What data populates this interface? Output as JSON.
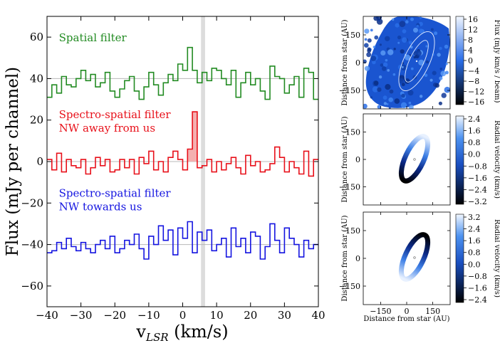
{
  "colors": {
    "green": "#228B22",
    "red": "#E8101A",
    "blue": "#1414E0",
    "ref_line": "#B8B8B8",
    "highlight_band": "#DCDCDC",
    "red_fill": "#F4B0B0",
    "map_blue": "#1a57d6"
  },
  "chart_data": [
    {
      "type": "line",
      "title": "",
      "xlabel": "v_LSR (km/s)",
      "xlabel_main": "v",
      "xlabel_sub": "LSR",
      "xlabel_units": " (km/s)",
      "ylabel": "Flux (mJy per channel)",
      "xlim": [
        -40,
        40
      ],
      "ylim": [
        -70,
        70
      ],
      "xticks": [
        -40,
        -30,
        -20,
        -10,
        0,
        10,
        20,
        30,
        40
      ],
      "xtick_labels": [
        "−40",
        "−30",
        "−20",
        "−10",
        "0",
        "10",
        "20",
        "30",
        "40"
      ],
      "yticks": [
        -60,
        -40,
        -20,
        0,
        20,
        40,
        60
      ],
      "ytick_labels": [
        "−60",
        "−40",
        "−20",
        "0",
        "20",
        "40",
        "60"
      ],
      "highlight_band_center": 6,
      "channel_width": 1.5,
      "series": [
        {
          "name": "Spatial filter",
          "label_lines": [
            "Spatial filter"
          ],
          "offset": 40,
          "color": "green",
          "values": [
            31,
            37,
            33,
            41,
            37,
            36,
            40,
            44,
            39,
            42,
            36,
            38,
            43,
            34,
            31,
            35,
            39,
            41,
            34,
            30,
            36,
            43,
            37,
            32,
            38,
            42,
            39,
            47,
            44,
            55,
            44,
            38,
            43,
            39,
            45,
            44,
            40,
            37,
            44,
            31,
            38,
            43,
            37,
            40,
            34,
            30,
            46,
            41,
            40,
            33,
            37,
            41,
            31,
            45,
            43,
            30
          ]
        },
        {
          "name": "Spectro-spatial filter NW away from us",
          "label_lines": [
            "Spectro-spatial filter",
            "NW away from us"
          ],
          "offset": 0,
          "color": "red",
          "values": [
            1,
            -4,
            4,
            -5,
            1,
            -2,
            -3,
            1,
            -6,
            -3,
            2,
            -2,
            1,
            -5,
            -4,
            1,
            -3,
            1,
            -6,
            2,
            -1,
            5,
            -4,
            0,
            -5,
            2,
            5,
            1,
            -4,
            6,
            24,
            -3,
            -2,
            1,
            -5,
            0,
            -4,
            -1,
            2,
            -3,
            -6,
            3,
            -2,
            0,
            -5,
            -4,
            -1,
            7,
            2,
            -5,
            0,
            -3,
            -6,
            5,
            -7,
            1
          ]
        },
        {
          "name": "Spectro-spatial filter NW towards us",
          "label_lines": [
            "Spectro-spatial filter",
            "NW towards us"
          ],
          "offset": -40,
          "color": "blue",
          "values": [
            -44,
            -43,
            -39,
            -42,
            -37,
            -41,
            -43,
            -39,
            -42,
            -44,
            -40,
            -38,
            -42,
            -36,
            -44,
            -42,
            -38,
            -40,
            -35,
            -42,
            -47,
            -36,
            -40,
            -31,
            -38,
            -33,
            -45,
            -32,
            -37,
            -29,
            -44,
            -34,
            -38,
            -33,
            -43,
            -40,
            -37,
            -46,
            -32,
            -41,
            -37,
            -44,
            -34,
            -36,
            -47,
            -41,
            -30,
            -38,
            -44,
            -32,
            -37,
            -40,
            -46,
            -38,
            -42,
            -40
          ]
        }
      ]
    },
    {
      "type": "heatmap",
      "title": "",
      "xlabel": "",
      "ylabel": "Distance from star (AU)",
      "colorbar_label": "Flux (mJy km/s / beam)",
      "colorbar_ticks": [
        "16",
        "12",
        "8",
        "4",
        "0",
        "−4",
        "−8",
        "−12",
        "−16"
      ],
      "yticks": [
        -150,
        0,
        150
      ],
      "ytick_labels": [
        "−150",
        "0",
        "150"
      ],
      "xlim": [
        -250,
        250
      ],
      "ylim": [
        -250,
        250
      ]
    },
    {
      "type": "heatmap",
      "title": "",
      "xlabel": "",
      "ylabel": "Distance from star (AU)",
      "colorbar_label": "Radial velocity (km/s)",
      "colorbar_ticks": [
        "2.4",
        "1.6",
        "0.8",
        "0.0",
        "−0.8",
        "−1.6",
        "−2.4",
        "−3.2"
      ],
      "yticks": [
        -150,
        0,
        150
      ],
      "ytick_labels": [
        "−150",
        "0",
        "150"
      ],
      "xlim": [
        -250,
        250
      ],
      "ylim": [
        -250,
        250
      ]
    },
    {
      "type": "heatmap",
      "title": "",
      "xlabel": "Distance from star (AU)",
      "ylabel": "Distance from star (AU)",
      "colorbar_label": "Radial velocity (km/s)",
      "colorbar_ticks": [
        "3.2",
        "2.4",
        "1.6",
        "0.8",
        "0.0",
        "−0.8",
        "−1.6",
        "−2.4"
      ],
      "xticks": [
        -150,
        0,
        150
      ],
      "xtick_labels": [
        "−150",
        "0",
        "150"
      ],
      "yticks": [
        -150,
        0,
        150
      ],
      "ytick_labels": [
        "−150",
        "0",
        "150"
      ],
      "xlim": [
        -250,
        250
      ],
      "ylim": [
        -250,
        250
      ]
    }
  ]
}
